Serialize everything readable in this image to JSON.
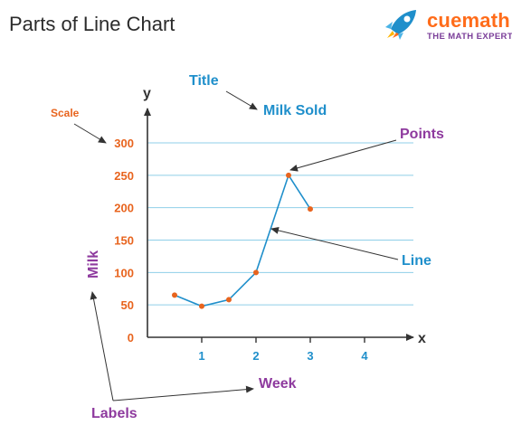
{
  "header": {
    "title": "Parts of Line Chart"
  },
  "brand": {
    "name": "cuemath",
    "tagline": "THE MATH EXPERT",
    "logo_icon": "rocket-icon"
  },
  "colors": {
    "axis": "#333333",
    "line": "#1f8fcb",
    "points": "#e8641e",
    "grid": "#8fcfe8",
    "annotation_title": "#1f8fcb",
    "annotation_labels": "#8e3a9e",
    "annotation_scale": "#e8641e",
    "tick_labels": "#e8641e",
    "x_tick_labels": "#1f8fcb",
    "brand_orange": "#ff6c1a",
    "brand_purple": "#7a3d98"
  },
  "chart_data": {
    "type": "line",
    "title": "Milk Sold",
    "xlabel": "Week",
    "ylabel": "Milk",
    "x_axis_letter": "x",
    "y_axis_letter": "y",
    "xlim": [
      0,
      4.9
    ],
    "ylim": [
      0,
      300
    ],
    "x_ticks": [
      1,
      2,
      3,
      4
    ],
    "y_ticks": [
      0,
      50,
      100,
      150,
      200,
      250,
      300
    ],
    "grid": "horizontal",
    "series": [
      {
        "x": [
          0.5,
          1,
          1.5,
          2,
          2.6,
          3
        ],
        "y": [
          65,
          48,
          58,
          100,
          250,
          198
        ]
      }
    ]
  },
  "annotations": {
    "title_tag": "Title",
    "scale_tag": "Scale",
    "points_tag": "Points",
    "line_tag": "Line",
    "labels_tag": "Labels"
  }
}
